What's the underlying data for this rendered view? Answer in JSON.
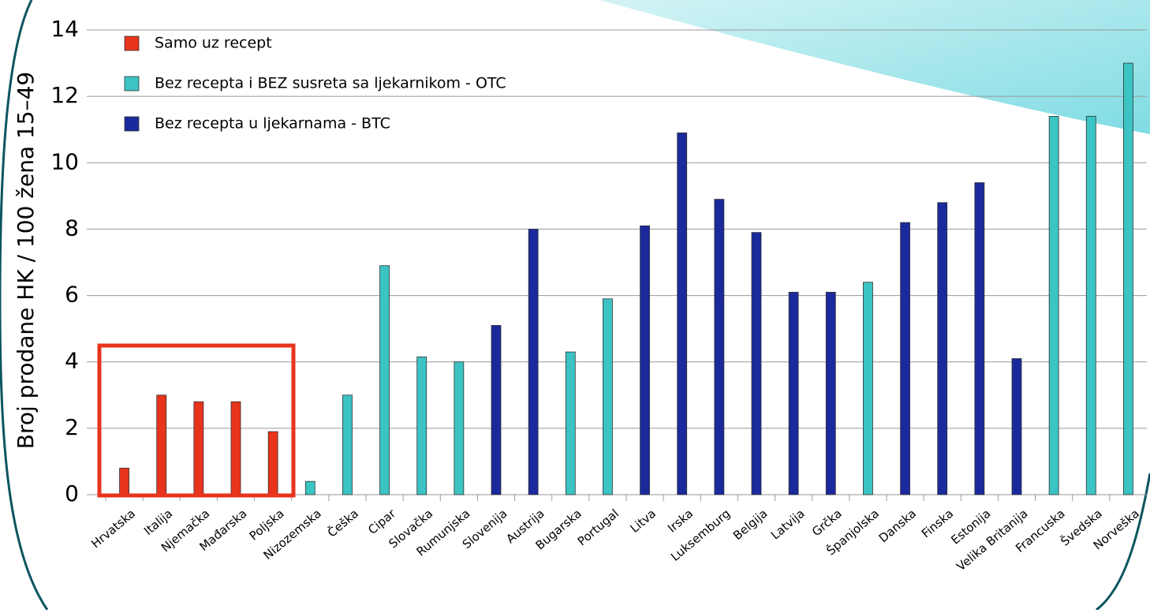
{
  "chart_data": {
    "type": "bar",
    "y_label": "Broj prodane HK / 100 žena 15–49",
    "categories": [
      "Hrvatska",
      "Italija",
      "Njemačka",
      "Mađarska",
      "Poljska",
      "Nizozemska",
      "Češka",
      "Cipar",
      "Slovačka",
      "Rumunjska",
      "Slovenija",
      "Austrija",
      "Bugarska",
      "Portugal",
      "Litva",
      "Irska",
      "Luksemburg",
      "Belgija",
      "Latvija",
      "Grčka",
      "Španjolska",
      "Danska",
      "Finska",
      "Estonija",
      "Velika Britanija",
      "Francuska",
      "Švedska",
      "Norveška"
    ],
    "series": [
      {
        "name": "Samo uz recept",
        "color": "#e8341c",
        "values": [
          0.8,
          3.0,
          2.8,
          2.8,
          1.9,
          null,
          null,
          null,
          null,
          null,
          null,
          null,
          null,
          null,
          null,
          null,
          null,
          null,
          null,
          null,
          null,
          null,
          null,
          null,
          null,
          null,
          null,
          null
        ]
      },
      {
        "name": "Bez recepta i BEZ susreta sa ljekarnikom - OTC",
        "color": "#3cc3c3",
        "values": [
          null,
          null,
          null,
          null,
          null,
          0.4,
          3.0,
          6.9,
          4.15,
          4.0,
          null,
          null,
          4.3,
          5.9,
          null,
          null,
          null,
          null,
          null,
          null,
          6.4,
          null,
          null,
          null,
          null,
          11.4,
          11.4,
          13.0
        ]
      },
      {
        "name": "Bez recepta  u ljekarnama - BTC",
        "color": "#1a2a9c",
        "values": [
          null,
          null,
          null,
          null,
          null,
          null,
          null,
          null,
          null,
          null,
          5.1,
          8.0,
          null,
          null,
          8.1,
          10.9,
          8.9,
          7.9,
          6.1,
          6.1,
          null,
          8.2,
          8.8,
          9.4,
          4.1,
          null,
          null,
          null
        ]
      }
    ],
    "ylim": [
      0,
      14
    ],
    "yticks": [
      0,
      2,
      4,
      6,
      8,
      10,
      12,
      14
    ],
    "grid": true
  }
}
